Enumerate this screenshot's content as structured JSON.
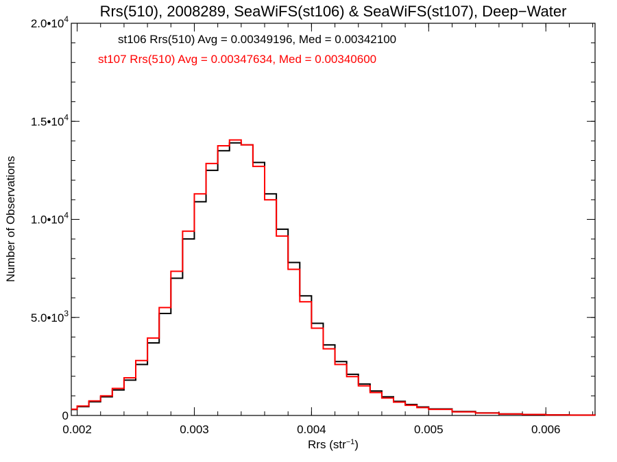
{
  "chart_data": {
    "type": "line",
    "title": "Rrs(510), 2008289, SeaWiFS(st106) & SeaWiFS(st107), Deep−Water",
    "xlabel_main": "Rrs (str",
    "xlabel_sup": "−1",
    "xlabel_end": ")",
    "ylabel": "Number of Observations",
    "xlim": [
      0.00195,
      0.00642
    ],
    "ylim": [
      0,
      20000
    ],
    "x_ticks": [
      {
        "value": 0.002,
        "label": "0.002"
      },
      {
        "value": 0.003,
        "label": "0.003"
      },
      {
        "value": 0.004,
        "label": "0.004"
      },
      {
        "value": 0.005,
        "label": "0.005"
      },
      {
        "value": 0.006,
        "label": "0.006"
      }
    ],
    "y_ticks": [
      {
        "value": 0,
        "mant": "0",
        "exp": ""
      },
      {
        "value": 5000,
        "mant": "5.0•10",
        "exp": "3"
      },
      {
        "value": 10000,
        "mant": "1.0•10",
        "exp": "4"
      },
      {
        "value": 15000,
        "mant": "1.5•10",
        "exp": "4"
      },
      {
        "value": 20000,
        "mant": "2.0•10",
        "exp": "4"
      }
    ],
    "annotations": [
      {
        "text": "st106 Rrs(510) Avg = 0.00349196, Med = 0.00342100",
        "color": "#000000"
      },
      {
        "text": "st107 Rrs(510) Avg = 0.00347634, Med = 0.00340600",
        "color": "#ff0000"
      }
    ],
    "series": [
      {
        "color": "#000000",
        "x": [
          0.00195,
          0.002,
          0.0021,
          0.0022,
          0.0023,
          0.0024,
          0.0025,
          0.0026,
          0.0027,
          0.0028,
          0.0029,
          0.003,
          0.0031,
          0.0032,
          0.0033,
          0.0034,
          0.0035,
          0.0036,
          0.0037,
          0.0038,
          0.0039,
          0.004,
          0.0041,
          0.0042,
          0.0043,
          0.0044,
          0.0045,
          0.0046,
          0.0047,
          0.0048,
          0.0049,
          0.005,
          0.0052,
          0.0054,
          0.0056,
          0.0058,
          0.006,
          0.0062,
          0.00642
        ],
        "values": [
          300,
          450,
          700,
          950,
          1300,
          1800,
          2600,
          3700,
          5200,
          7000,
          9000,
          10900,
          12500,
          13500,
          13900,
          13800,
          12900,
          11300,
          9500,
          7800,
          6100,
          4700,
          3600,
          2750,
          2100,
          1600,
          1250,
          950,
          720,
          560,
          430,
          330,
          200,
          130,
          80,
          50,
          30,
          20,
          10
        ]
      },
      {
        "color": "#ff0000",
        "x": [
          0.00195,
          0.002,
          0.0021,
          0.0022,
          0.0023,
          0.0024,
          0.0025,
          0.0026,
          0.0027,
          0.0028,
          0.0029,
          0.003,
          0.0031,
          0.0032,
          0.0033,
          0.0034,
          0.0035,
          0.0036,
          0.0037,
          0.0038,
          0.0039,
          0.004,
          0.0041,
          0.0042,
          0.0043,
          0.0044,
          0.0045,
          0.0046,
          0.0047,
          0.0048,
          0.0049,
          0.005,
          0.0052,
          0.0054,
          0.0056,
          0.0058,
          0.006,
          0.0062,
          0.00642
        ],
        "values": [
          320,
          480,
          740,
          1000,
          1380,
          1920,
          2800,
          3950,
          5500,
          7350,
          9400,
          11300,
          12850,
          13750,
          14050,
          13800,
          12700,
          11000,
          9150,
          7450,
          5800,
          4450,
          3400,
          2600,
          1980,
          1510,
          1170,
          890,
          680,
          520,
          400,
          310,
          185,
          120,
          75,
          47,
          28,
          18,
          9
        ]
      }
    ]
  }
}
